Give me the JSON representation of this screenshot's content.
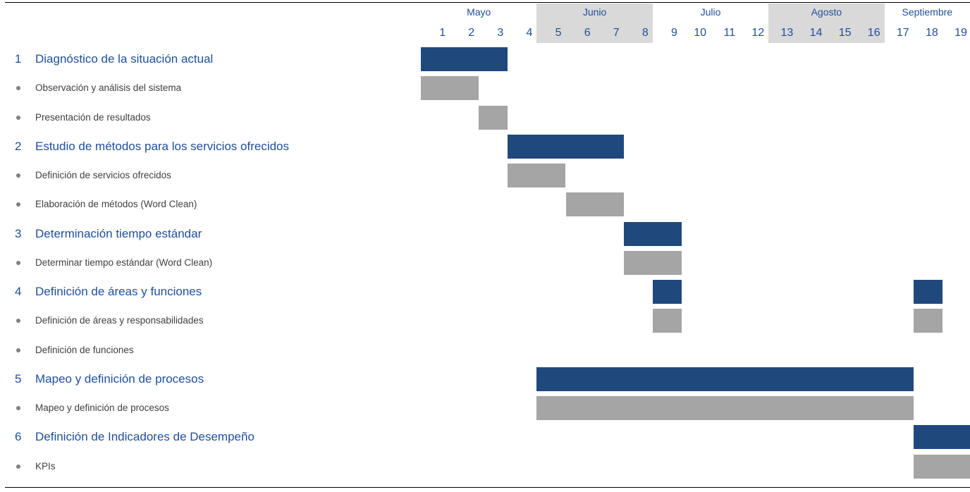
{
  "colors": {
    "task_text": "#1f4e9c",
    "sub_text": "#404040",
    "task_bar": "#1f497d",
    "sub_bar": "#a5a5a5",
    "month_shade": "#d9d9d9",
    "bullet": "#808080"
  },
  "chart_data": {
    "type": "gantt",
    "time_unit": "week",
    "weeks": [
      "1",
      "2",
      "3",
      "4",
      "5",
      "6",
      "7",
      "8",
      "9",
      "10",
      "11",
      "12",
      "13",
      "14",
      "15",
      "16",
      "17",
      "18",
      "19"
    ],
    "months": [
      {
        "name": "Mayo",
        "first_week": 1,
        "last_week": 4,
        "shaded": false
      },
      {
        "name": "Junio",
        "first_week": 5,
        "last_week": 8,
        "shaded": true
      },
      {
        "name": "Julio",
        "first_week": 9,
        "last_week": 12,
        "shaded": false
      },
      {
        "name": "Agosto",
        "first_week": 13,
        "last_week": 16,
        "shaded": true
      },
      {
        "name": "Septiembre",
        "first_week": 17,
        "last_week": 19,
        "shaded": false
      }
    ],
    "rows": [
      {
        "kind": "task",
        "num": "1",
        "label": "Diagnóstico de la situación actual",
        "spans": [
          [
            1,
            3
          ]
        ]
      },
      {
        "kind": "sub",
        "label": "Observación y análisis del sistema",
        "spans": [
          [
            1,
            2
          ]
        ]
      },
      {
        "kind": "sub",
        "label": "Presentación de resultados",
        "spans": [
          [
            3,
            3
          ]
        ]
      },
      {
        "kind": "task",
        "num": "2",
        "label": "Estudio de métodos para los servicios ofrecidos",
        "spans": [
          [
            4,
            7
          ]
        ]
      },
      {
        "kind": "sub",
        "label": "Definición de servicios ofrecidos",
        "spans": [
          [
            4,
            5
          ]
        ]
      },
      {
        "kind": "sub",
        "label": "Elaboración de métodos (Word Clean)",
        "spans": [
          [
            6,
            7
          ]
        ]
      },
      {
        "kind": "task",
        "num": "3",
        "label": "Determinación tiempo estándar",
        "spans": [
          [
            8,
            9
          ]
        ]
      },
      {
        "kind": "sub",
        "label": "Determinar tiempo estándar (Word Clean)",
        "spans": [
          [
            8,
            9
          ]
        ]
      },
      {
        "kind": "task",
        "num": "4",
        "label": "Definición de áreas y funciones",
        "spans": [
          [
            9,
            9
          ],
          [
            18,
            18
          ]
        ]
      },
      {
        "kind": "sub",
        "label": "Definición de áreas y responsabilidades",
        "spans": [
          [
            9,
            9
          ],
          [
            18,
            18
          ]
        ]
      },
      {
        "kind": "sub",
        "label": "Definición de funciones",
        "spans": []
      },
      {
        "kind": "task",
        "num": "5",
        "label": "Mapeo y definición de procesos",
        "spans": [
          [
            5,
            17
          ]
        ]
      },
      {
        "kind": "sub",
        "label": "Mapeo y definición de procesos",
        "spans": [
          [
            5,
            17
          ]
        ]
      },
      {
        "kind": "task",
        "num": "6",
        "label": "Definición de Indicadores de Desempeño",
        "spans": [
          [
            18,
            19
          ]
        ]
      },
      {
        "kind": "sub",
        "label": "KPIs",
        "spans": [
          [
            18,
            19
          ]
        ]
      }
    ]
  }
}
